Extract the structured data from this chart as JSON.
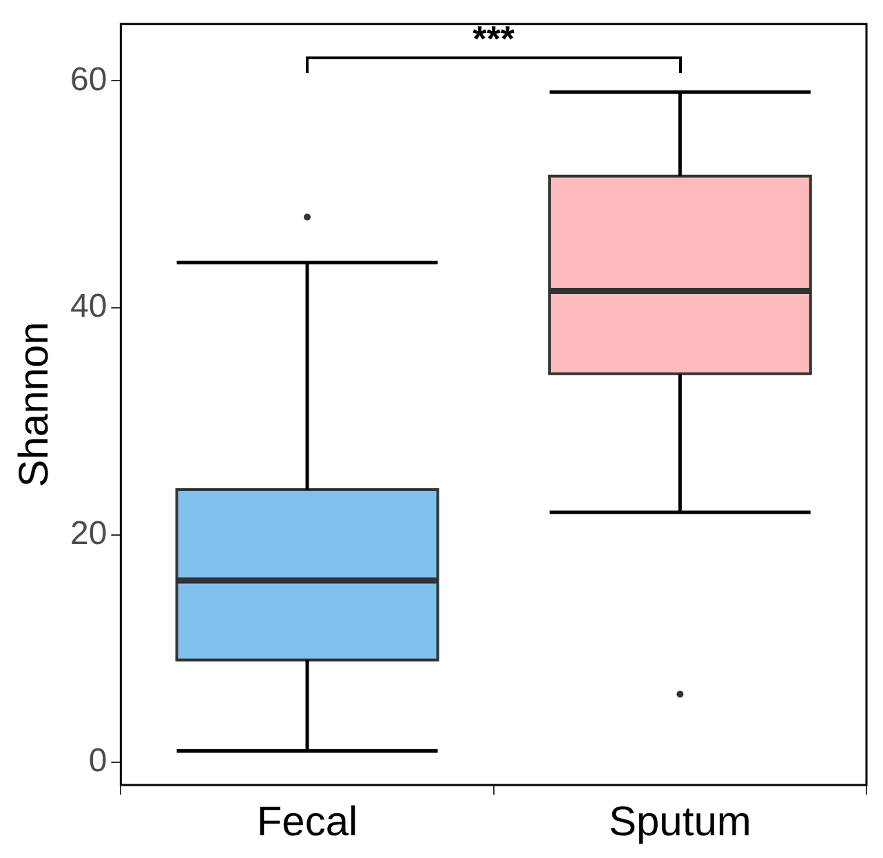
{
  "chart_data": {
    "type": "box",
    "ylabel": "Shannon",
    "categories": [
      "Fecal",
      "Sputum"
    ],
    "colors": [
      "#80c0ed",
      "#ffbabd"
    ],
    "boxes": [
      {
        "low": 1,
        "q1": 9,
        "median": 16,
        "q3": 24,
        "high": 44,
        "outliers": [
          48
        ]
      },
      {
        "low": 22,
        "q1": 34.2,
        "median": 41.5,
        "q3": 51.6,
        "high": 59,
        "outliers": [
          6
        ]
      }
    ],
    "ylim": [
      -2,
      65
    ],
    "yticks": [
      0,
      20,
      40,
      60
    ],
    "grid": false,
    "legend": false,
    "annotations": [
      "***"
    ]
  }
}
